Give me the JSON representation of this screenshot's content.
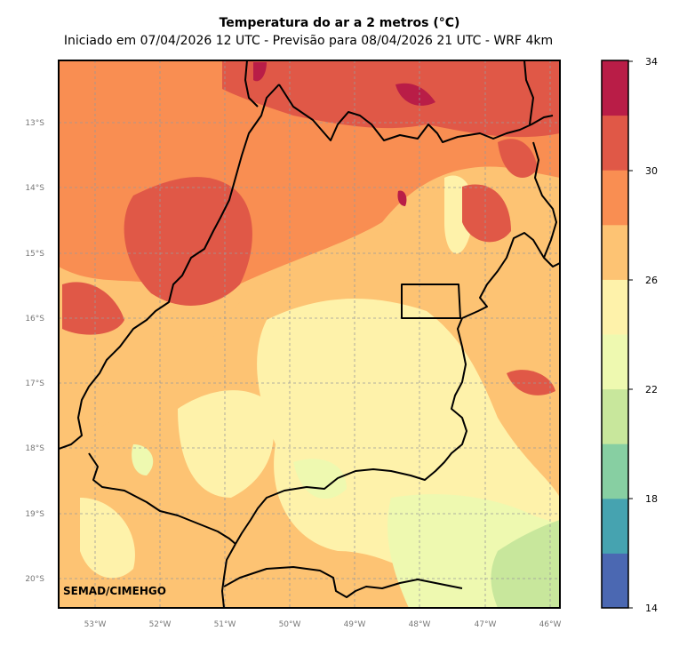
{
  "title": "Temperatura do ar a 2 metros (°C)",
  "subtitle": "Iniciado em 07/04/2026 12 UTC - Previsão para 08/04/2026 21 UTC - WRF 4km",
  "credit": "SEMAD/CIMEHGO",
  "lat_ticks": [
    "13°S",
    "14°S",
    "15°S",
    "16°S",
    "17°S",
    "18°S",
    "19°S",
    "20°S"
  ],
  "lon_ticks": [
    "53°W",
    "52°W",
    "51°W",
    "50°W",
    "49°W",
    "48°W",
    "47°W",
    "46°W"
  ],
  "colorbar": {
    "ticks": [
      "34",
      "30",
      "26",
      "22",
      "18",
      "14"
    ],
    "min": 14,
    "max": 34,
    "step": 2,
    "colors": [
      "#4b68b2",
      "#46a3b0",
      "#87cfa2",
      "#c8e79c",
      "#eef9b0",
      "#fef2aa",
      "#fdc373",
      "#f98e52",
      "#e05847",
      "#b91d47"
    ]
  }
}
